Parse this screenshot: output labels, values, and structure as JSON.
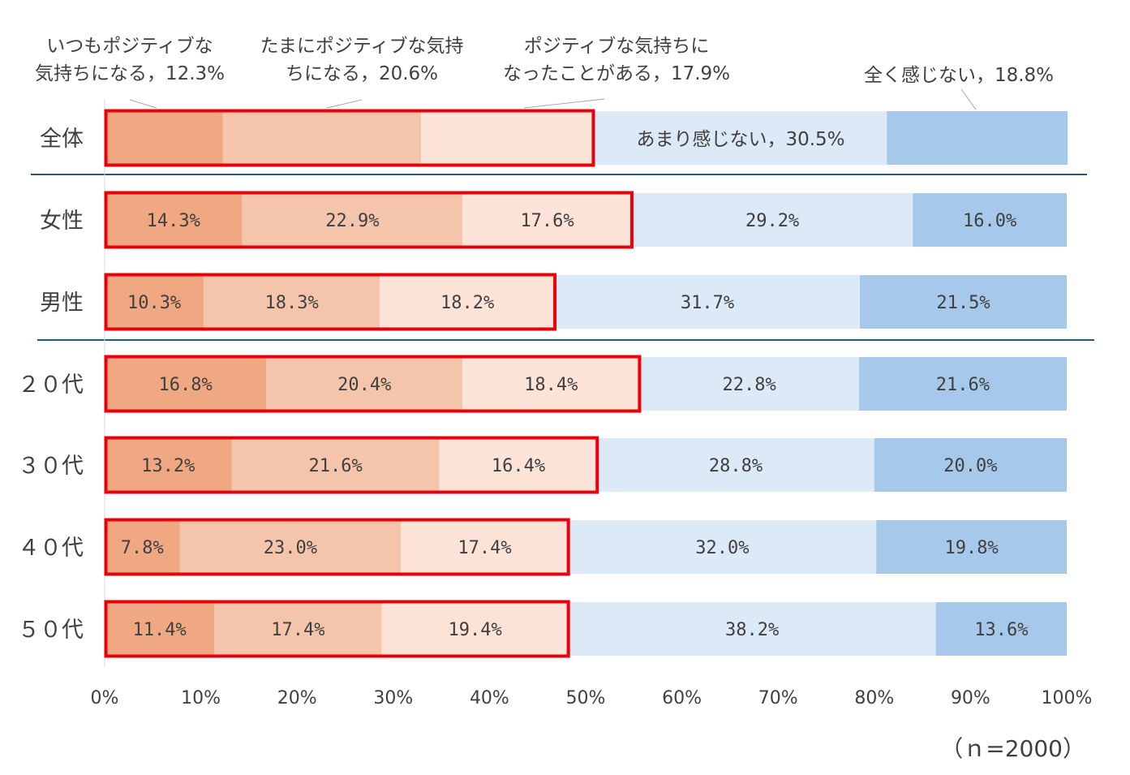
{
  "chart_data": {
    "type": "bar",
    "orientation": "horizontal-stacked-100",
    "categories": [
      "全体",
      "女性",
      "男性",
      "２０代",
      "３０代",
      "４０代",
      "５０代"
    ],
    "series": [
      {
        "name": "いつもポジティブな気持ちになる",
        "color": "#f0a882",
        "values": [
          12.3,
          14.3,
          10.3,
          16.8,
          13.2,
          7.8,
          11.4
        ]
      },
      {
        "name": "たまにポジティブな気持ちになる",
        "color": "#f5c5ab",
        "values": [
          20.6,
          22.9,
          18.3,
          20.4,
          21.6,
          23.0,
          17.4
        ]
      },
      {
        "name": "ポジティブな気持ちになったことがある",
        "color": "#fbe3d8",
        "values": [
          17.9,
          17.6,
          18.2,
          18.4,
          16.4,
          17.4,
          19.4
        ]
      },
      {
        "name": "あまり感じない",
        "color": "#dce9f7",
        "values": [
          30.5,
          29.2,
          31.7,
          22.8,
          28.8,
          32.0,
          38.2
        ]
      },
      {
        "name": "全く感じない",
        "color": "#a6c9eb",
        "values": [
          18.8,
          16.0,
          21.5,
          21.6,
          20.0,
          19.8,
          13.6
        ]
      }
    ],
    "value_labels": [
      [
        "",
        "",
        "",
        "",
        ""
      ],
      [
        "14.3%",
        "22.9%",
        "17.6%",
        "29.2%",
        "16.0%"
      ],
      [
        "10.3%",
        "18.3%",
        "18.2%",
        "31.7%",
        "21.5%"
      ],
      [
        "16.8%",
        "20.4%",
        "18.4%",
        "22.8%",
        "21.6%"
      ],
      [
        "13.2%",
        "21.6%",
        "16.4%",
        "28.8%",
        "20.0%"
      ],
      [
        "7.8%",
        "23.0%",
        "17.4%",
        "32.0%",
        "19.8%"
      ],
      [
        "11.4%",
        "17.4%",
        "19.4%",
        "38.2%",
        "13.6%"
      ]
    ],
    "callouts": {
      "s1_line1": "いつもポジティブな",
      "s1_line2": "気持ちになる，12.3%",
      "s2_line1": "たまにポジティブな気持",
      "s2_line2": "ちになる，20.6%",
      "s3_line1": "ポジティブな気持ちに",
      "s3_line2": "なったことがある，17.9%",
      "s4": "あまり感じない，30.5%",
      "s5": "全く感じない，18.8%"
    },
    "x_ticks": [
      "0%",
      "10%",
      "20%",
      "30%",
      "40%",
      "50%",
      "60%",
      "70%",
      "80%",
      "90%",
      "100%"
    ],
    "xlim": [
      0,
      100
    ],
    "highlight": "first three series outlined in red",
    "highlight_color": "#e8000b",
    "separator_color": "#1f5a7a",
    "footnote": "（ｎ=2000）"
  }
}
